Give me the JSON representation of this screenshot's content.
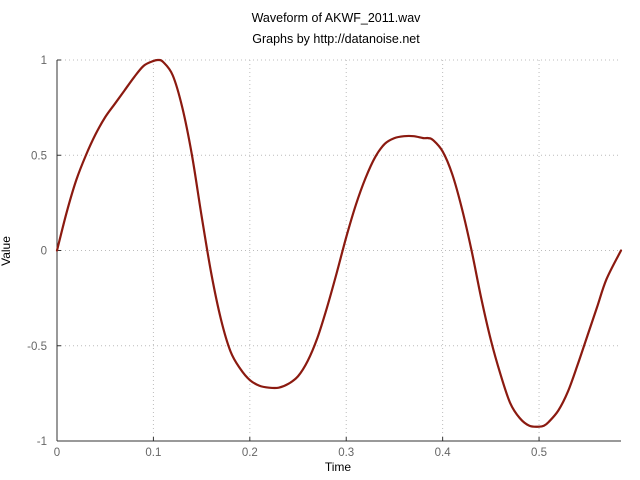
{
  "chart_data": {
    "type": "line",
    "title": "Waveform of AKWF_2011.wav",
    "subtitle": "Graphs by http://datanoise.net",
    "xlabel": "Time",
    "ylabel": "Value",
    "xlim": [
      0,
      0.585
    ],
    "ylim": [
      -1,
      1
    ],
    "xticks": [
      0,
      0.1,
      0.2,
      0.3,
      0.4,
      0.5
    ],
    "xtick_labels": [
      "0",
      "0.1",
      "0.2",
      "0.3",
      "0.4",
      "0.5"
    ],
    "yticks": [
      1,
      0.5,
      0,
      -0.5,
      -1
    ],
    "ytick_labels": [
      "1",
      "0.5",
      "0",
      "-0.5",
      "-1"
    ],
    "grid": true,
    "legend": "none",
    "line_color": "#8b1a10",
    "series": [
      {
        "x": [
          0,
          0.01,
          0.02,
          0.03,
          0.04,
          0.05,
          0.06,
          0.07,
          0.08,
          0.09,
          0.1,
          0.105,
          0.11,
          0.12,
          0.13,
          0.14,
          0.15,
          0.16,
          0.17,
          0.18,
          0.19,
          0.2,
          0.21,
          0.22,
          0.23,
          0.24,
          0.25,
          0.26,
          0.27,
          0.28,
          0.29,
          0.3,
          0.31,
          0.32,
          0.33,
          0.34,
          0.35,
          0.36,
          0.37,
          0.38,
          0.385,
          0.39,
          0.4,
          0.41,
          0.42,
          0.43,
          0.44,
          0.45,
          0.46,
          0.47,
          0.48,
          0.49,
          0.5,
          0.505,
          0.51,
          0.52,
          0.53,
          0.54,
          0.55,
          0.56,
          0.57,
          0.585
        ],
        "y": [
          0,
          0.2,
          0.37,
          0.5,
          0.61,
          0.7,
          0.77,
          0.84,
          0.91,
          0.97,
          0.995,
          1.0,
          0.99,
          0.92,
          0.75,
          0.5,
          0.18,
          -0.12,
          -0.36,
          -0.53,
          -0.62,
          -0.68,
          -0.71,
          -0.72,
          -0.72,
          -0.7,
          -0.66,
          -0.58,
          -0.46,
          -0.3,
          -0.12,
          0.07,
          0.24,
          0.38,
          0.49,
          0.56,
          0.59,
          0.6,
          0.6,
          0.59,
          0.59,
          0.58,
          0.52,
          0.4,
          0.22,
          0.0,
          -0.25,
          -0.47,
          -0.65,
          -0.8,
          -0.88,
          -0.92,
          -0.925,
          -0.92,
          -0.9,
          -0.84,
          -0.74,
          -0.6,
          -0.45,
          -0.3,
          -0.15,
          0.0
        ]
      }
    ]
  }
}
